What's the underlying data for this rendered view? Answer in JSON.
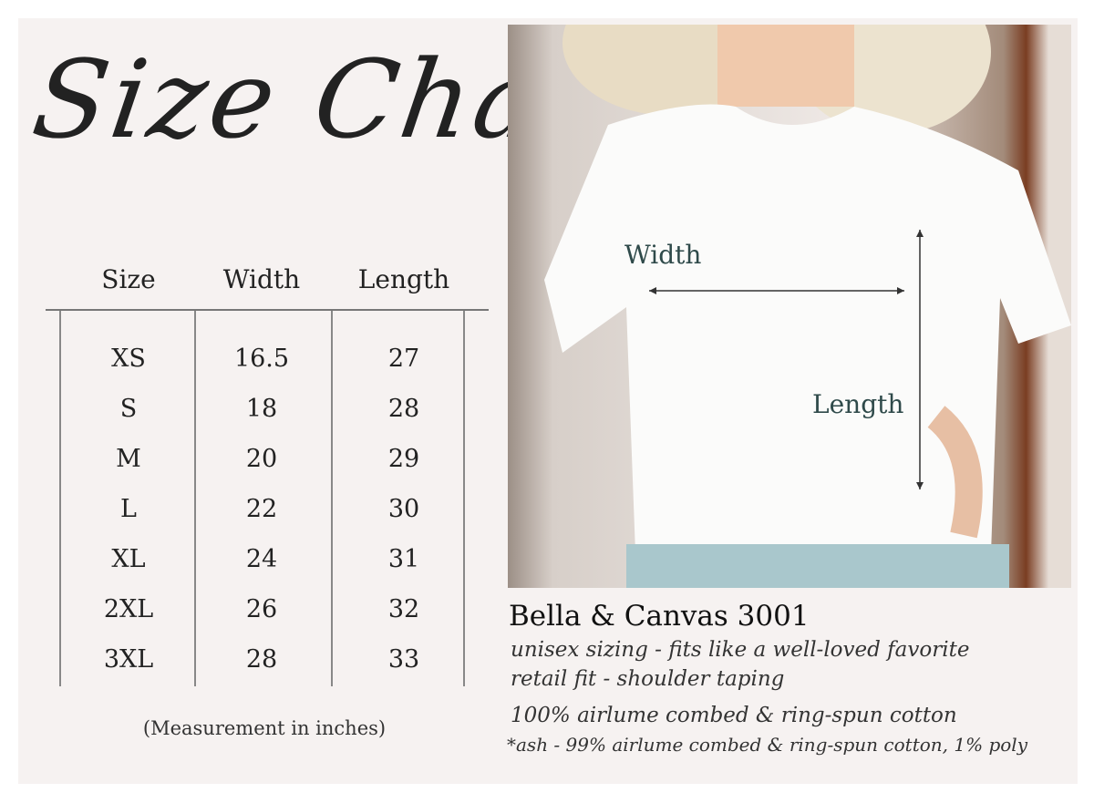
{
  "title": "Size Chart",
  "table": {
    "headers": [
      "Size",
      "Width",
      "Length"
    ],
    "rows": [
      [
        "XS",
        "16.5",
        "27"
      ],
      [
        "S",
        "18",
        "28"
      ],
      [
        "M",
        "20",
        "29"
      ],
      [
        "L",
        "22",
        "30"
      ],
      [
        "XL",
        "24",
        "31"
      ],
      [
        "2XL",
        "26",
        "32"
      ],
      [
        "3XL",
        "28",
        "33"
      ]
    ]
  },
  "note": "(Measurement in inches)",
  "photo": {
    "width_label": "Width",
    "length_label": "Length"
  },
  "product": {
    "name": "Bella & Canvas 3001",
    "line1": "unisex sizing - fits like a well-loved favorite",
    "line2": "retail fit - shoulder taping",
    "line3": "100% airlume combed & ring-spun cotton",
    "line4": "*ash - 99% airlume combed & ring-spun cotton, 1% poly"
  }
}
